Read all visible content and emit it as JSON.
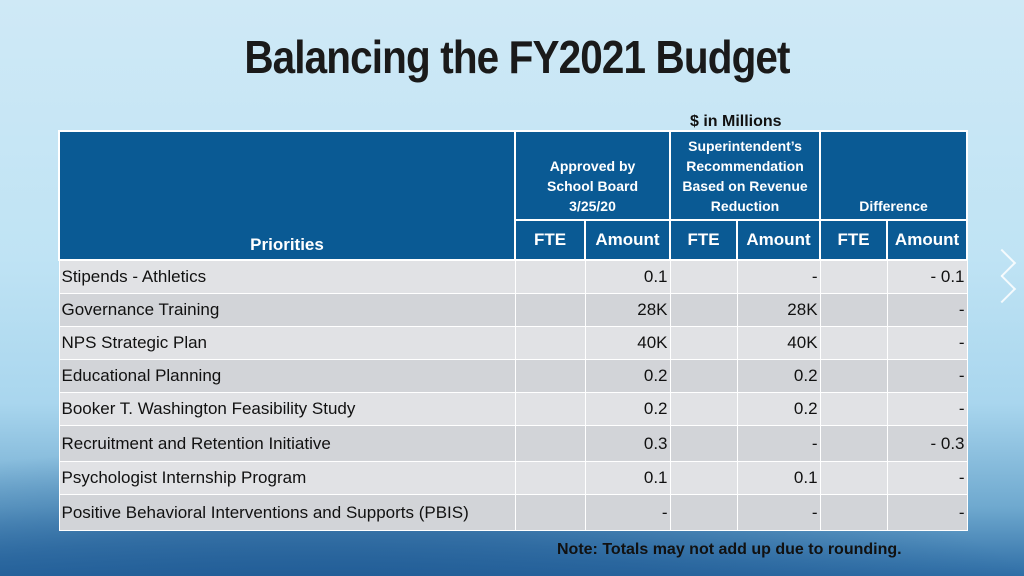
{
  "title": "Balancing the FY2021 Budget",
  "units_note": "$ in Millions",
  "footnote": "Note:  Totals may not add up due to rounding.",
  "table": {
    "priorities_header": "Priorities",
    "groups": [
      {
        "line1": "Approved by",
        "line2": "School Board",
        "line3": "3/25/20",
        "line4": ""
      },
      {
        "line1": "Superintendent’s",
        "line2": "Recommendation",
        "line3": "Based on Revenue",
        "line4": "Reduction"
      },
      {
        "line1": "",
        "line2": "",
        "line3": "",
        "line4": "Difference"
      }
    ],
    "sub_headers": [
      "FTE",
      "Amount",
      "FTE",
      "Amount",
      "FTE",
      "Amount"
    ],
    "rows": [
      {
        "label": "Stipends - Athletics",
        "fte1": "",
        "amt1": "0.1",
        "fte2": "",
        "amt2": "-",
        "fte3": "",
        "amt3": "- 0.1"
      },
      {
        "label": "Governance Training",
        "fte1": "",
        "amt1": "28K",
        "fte2": "",
        "amt2": "28K",
        "fte3": "",
        "amt3": "-"
      },
      {
        "label": "NPS Strategic Plan",
        "fte1": "",
        "amt1": "40K",
        "fte2": "",
        "amt2": "40K",
        "fte3": "",
        "amt3": "-"
      },
      {
        "label": "Educational Planning",
        "fte1": "",
        "amt1": "0.2",
        "fte2": "",
        "amt2": "0.2",
        "fte3": "",
        "amt3": "-"
      },
      {
        "label": "Booker T. Washington Feasibility Study",
        "fte1": "",
        "amt1": "0.2",
        "fte2": "",
        "amt2": "0.2",
        "fte3": "",
        "amt3": "-"
      },
      {
        "label": "Recruitment and Retention Initiative",
        "fte1": "",
        "amt1": "0.3",
        "fte2": "",
        "amt2": "-",
        "fte3": "",
        "amt3": "- 0.3"
      },
      {
        "label": "Psychologist Internship Program",
        "fte1": "",
        "amt1": "0.1",
        "fte2": "",
        "amt2": "0.1",
        "fte3": "",
        "amt3": "-"
      },
      {
        "label": "Positive Behavioral Interventions and Supports (PBIS)",
        "fte1": "",
        "amt1": "-",
        "fte2": "",
        "amt2": "-",
        "fte3": "",
        "amt3": "-"
      }
    ]
  }
}
